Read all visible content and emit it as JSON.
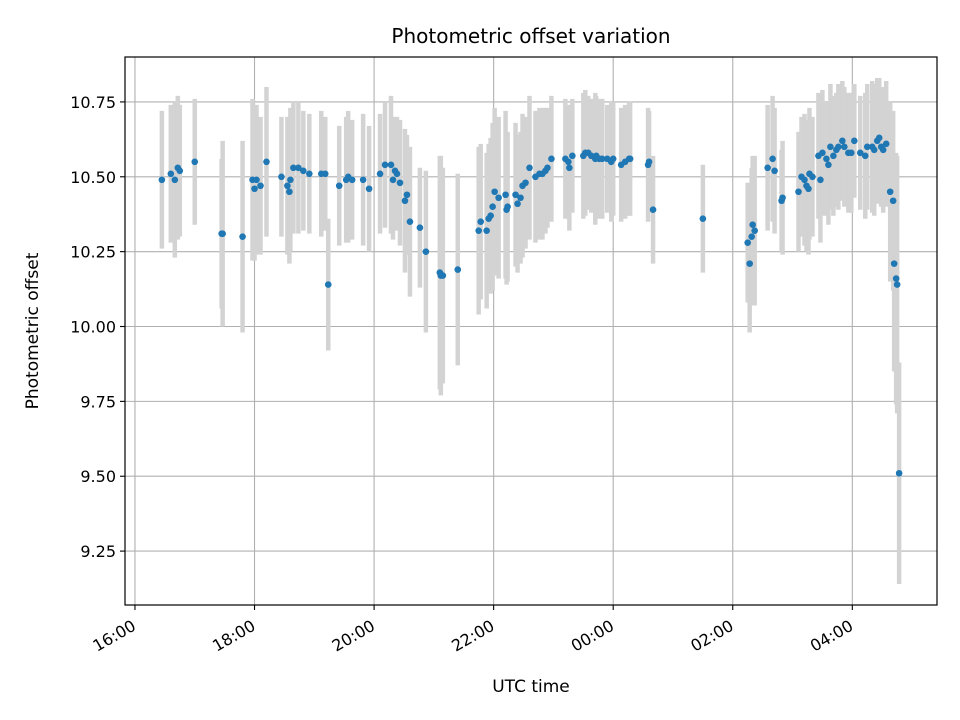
{
  "chart_data": {
    "type": "scatter",
    "title": "Photometric offset variation",
    "xlabel": "UTC time",
    "ylabel": "Photometric offset",
    "x_ticks": [
      "16:00",
      "18:00",
      "20:00",
      "22:00",
      "00:00",
      "02:00",
      "04:00"
    ],
    "y_ticks": [
      "9.25",
      "9.50",
      "9.75",
      "10.00",
      "10.25",
      "10.50",
      "10.75"
    ],
    "xlim": [
      "15:50",
      "05:25"
    ],
    "ylim": [
      9.07,
      10.9
    ],
    "grid": true,
    "colors": {
      "points": "#1f77b4",
      "errorbars": "#d3d3d3",
      "grid": "#b0b0b0"
    },
    "series": [
      {
        "x": [
          "16:27",
          "16:36",
          "16:40",
          "16:43",
          "16:45",
          "17:00",
          "17:27",
          "17:28",
          "17:48",
          "17:58",
          "18:00",
          "18:02",
          "18:06",
          "18:12",
          "18:27",
          "18:33",
          "18:35",
          "18:36",
          "18:39",
          "18:44",
          "18:49",
          "18:55",
          "19:07",
          "19:11",
          "19:14",
          "19:25",
          "19:32",
          "19:34",
          "19:38",
          "19:49",
          "19:55",
          "20:06",
          "20:11",
          "20:17",
          "20:19",
          "20:21",
          "20:23",
          "20:26",
          "20:31",
          "20:33",
          "20:36",
          "20:46",
          "20:52",
          "21:06",
          "21:07",
          "21:09",
          "21:24",
          "21:45",
          "21:47",
          "21:53",
          "21:55",
          "21:57",
          "21:59",
          "22:01",
          "22:05",
          "22:12",
          "22:13",
          "22:14",
          "22:22",
          "22:24",
          "22:27",
          "22:29",
          "22:32",
          "22:36",
          "22:42",
          "22:46",
          "22:49",
          "22:52",
          "22:54",
          "22:58",
          "23:12",
          "23:15",
          "23:16",
          "23:19",
          "23:30",
          "23:32",
          "23:35",
          "23:38",
          "23:42",
          "23:43",
          "23:46",
          "23:49",
          "23:54",
          "23:58",
          "24:00",
          "24:08",
          "24:12",
          "24:16",
          "24:17",
          "24:35",
          "24:36",
          "24:40",
          "25:30",
          "26:15",
          "26:17",
          "26:19",
          "26:20",
          "26:22",
          "26:35",
          "26:40",
          "26:42",
          "26:49",
          "26:50",
          "27:06",
          "27:09",
          "27:12",
          "27:14",
          "27:16",
          "27:17",
          "27:20",
          "27:26",
          "27:28",
          "27:30",
          "27:34",
          "27:36",
          "27:38",
          "27:41",
          "27:44",
          "27:46",
          "27:50",
          "27:52",
          "27:56",
          "27:59",
          "28:02",
          "28:08",
          "28:13",
          "28:15",
          "28:20",
          "28:22",
          "28:25",
          "28:27",
          "28:29",
          "28:31",
          "28:34",
          "28:38",
          "28:41",
          "28:42",
          "28:44",
          "28:45",
          "28:47"
        ],
        "y": [
          10.49,
          10.51,
          10.49,
          10.53,
          10.52,
          10.55,
          10.31,
          10.31,
          10.3,
          10.49,
          10.46,
          10.49,
          10.47,
          10.55,
          10.5,
          10.47,
          10.45,
          10.49,
          10.53,
          10.53,
          10.52,
          10.51,
          10.51,
          10.51,
          10.14,
          10.47,
          10.49,
          10.5,
          10.49,
          10.49,
          10.46,
          10.51,
          10.54,
          10.54,
          10.49,
          10.52,
          10.51,
          10.48,
          10.42,
          10.44,
          10.35,
          10.33,
          10.25,
          10.18,
          10.17,
          10.17,
          10.19,
          10.32,
          10.35,
          10.32,
          10.36,
          10.37,
          10.4,
          10.45,
          10.43,
          10.44,
          10.39,
          10.4,
          10.44,
          10.41,
          10.43,
          10.47,
          10.48,
          10.53,
          10.5,
          10.51,
          10.51,
          10.52,
          10.53,
          10.56,
          10.56,
          10.55,
          10.53,
          10.57,
          10.57,
          10.58,
          10.58,
          10.57,
          10.56,
          10.57,
          10.56,
          10.56,
          10.56,
          10.55,
          10.56,
          10.54,
          10.55,
          10.56,
          10.56,
          10.54,
          10.55,
          10.39,
          10.36,
          10.28,
          10.21,
          10.3,
          10.34,
          10.32,
          10.53,
          10.56,
          10.52,
          10.42,
          10.43,
          10.45,
          10.5,
          10.49,
          10.47,
          10.46,
          10.51,
          10.5,
          10.57,
          10.49,
          10.58,
          10.56,
          10.54,
          10.6,
          10.57,
          10.59,
          10.6,
          10.62,
          10.6,
          10.58,
          10.58,
          10.62,
          10.58,
          10.57,
          10.6,
          10.6,
          10.59,
          10.62,
          10.63,
          10.6,
          10.59,
          10.61,
          10.45,
          10.42,
          10.21,
          10.16,
          10.14,
          9.51
        ],
        "yerr": [
          0.23,
          0.23,
          0.26,
          0.24,
          0.22,
          0.21,
          0.25,
          0.31,
          0.32,
          0.27,
          0.24,
          0.25,
          0.23,
          0.25,
          0.2,
          0.23,
          0.24,
          0.24,
          0.22,
          0.22,
          0.2,
          0.2,
          0.21,
          0.19,
          0.22,
          0.2,
          0.21,
          0.22,
          0.2,
          0.22,
          0.21,
          0.2,
          0.21,
          0.23,
          0.2,
          0.18,
          0.19,
          0.21,
          0.24,
          0.2,
          0.25,
          0.2,
          0.27,
          0.39,
          0.4,
          0.36,
          0.32,
          0.28,
          0.26,
          0.26,
          0.25,
          0.26,
          0.28,
          0.28,
          0.27,
          0.28,
          0.25,
          0.25,
          0.24,
          0.23,
          0.22,
          0.24,
          0.22,
          0.24,
          0.22,
          0.22,
          0.22,
          0.21,
          0.2,
          0.21,
          0.2,
          0.19,
          0.21,
          0.19,
          0.21,
          0.21,
          0.19,
          0.19,
          0.22,
          0.2,
          0.2,
          0.2,
          0.18,
          0.2,
          0.19,
          0.19,
          0.19,
          0.19,
          0.19,
          0.19,
          0.17,
          0.18,
          0.18,
          0.2,
          0.23,
          0.23,
          0.23,
          0.25,
          0.21,
          0.21,
          0.21,
          0.17,
          0.19,
          0.2,
          0.2,
          0.22,
          0.22,
          0.22,
          0.22,
          0.2,
          0.21,
          0.21,
          0.21,
          0.19,
          0.2,
          0.21,
          0.2,
          0.19,
          0.21,
          0.2,
          0.2,
          0.2,
          0.2,
          0.19,
          0.19,
          0.21,
          0.21,
          0.22,
          0.22,
          0.21,
          0.2,
          0.2,
          0.21,
          0.21,
          0.3,
          0.3,
          0.36,
          0.42,
          0.43,
          0.37
        ]
      }
    ]
  }
}
